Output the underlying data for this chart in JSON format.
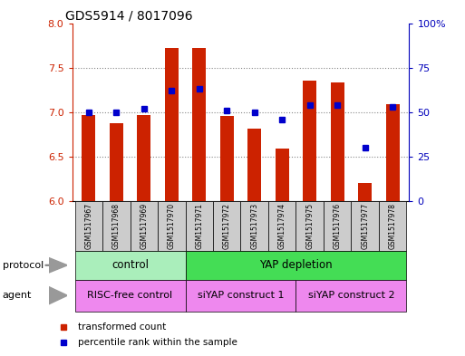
{
  "title": "GDS5914 / 8017096",
  "samples": [
    "GSM1517967",
    "GSM1517968",
    "GSM1517969",
    "GSM1517970",
    "GSM1517971",
    "GSM1517972",
    "GSM1517973",
    "GSM1517974",
    "GSM1517975",
    "GSM1517976",
    "GSM1517977",
    "GSM1517978"
  ],
  "transformed_count": [
    6.97,
    6.88,
    6.97,
    7.72,
    7.72,
    6.96,
    6.81,
    6.59,
    7.35,
    7.33,
    6.2,
    7.09
  ],
  "percentile_rank": [
    50,
    50,
    52,
    62,
    63,
    51,
    50,
    46,
    54,
    54,
    30,
    53
  ],
  "y_min": 6.0,
  "y_max": 8.0,
  "y_ticks": [
    6.0,
    6.5,
    7.0,
    7.5,
    8.0
  ],
  "y2_ticks": [
    0,
    25,
    50,
    75,
    100
  ],
  "bar_color": "#cc2200",
  "dot_color": "#0000cc",
  "protocol_groups": [
    {
      "label": "control",
      "start": 0,
      "end": 3,
      "color": "#aaeebb"
    },
    {
      "label": "YAP depletion",
      "start": 4,
      "end": 11,
      "color": "#44dd55"
    }
  ],
  "agent_groups": [
    {
      "label": "RISC-free control",
      "start": 0,
      "end": 3,
      "color": "#ee88ee"
    },
    {
      "label": "siYAP construct 1",
      "start": 4,
      "end": 7,
      "color": "#ee88ee"
    },
    {
      "label": "siYAP construct 2",
      "start": 8,
      "end": 11,
      "color": "#ee88ee"
    }
  ],
  "legend_items": [
    {
      "label": "transformed count",
      "color": "#cc2200"
    },
    {
      "label": "percentile rank within the sample",
      "color": "#0000cc"
    }
  ],
  "left_axis_color": "#cc2200",
  "right_axis_color": "#0000bb",
  "background_color": "#ffffff",
  "grid_color": "#888888",
  "label_box_color": "#cccccc",
  "protocol_label": "protocol",
  "agent_label": "agent"
}
